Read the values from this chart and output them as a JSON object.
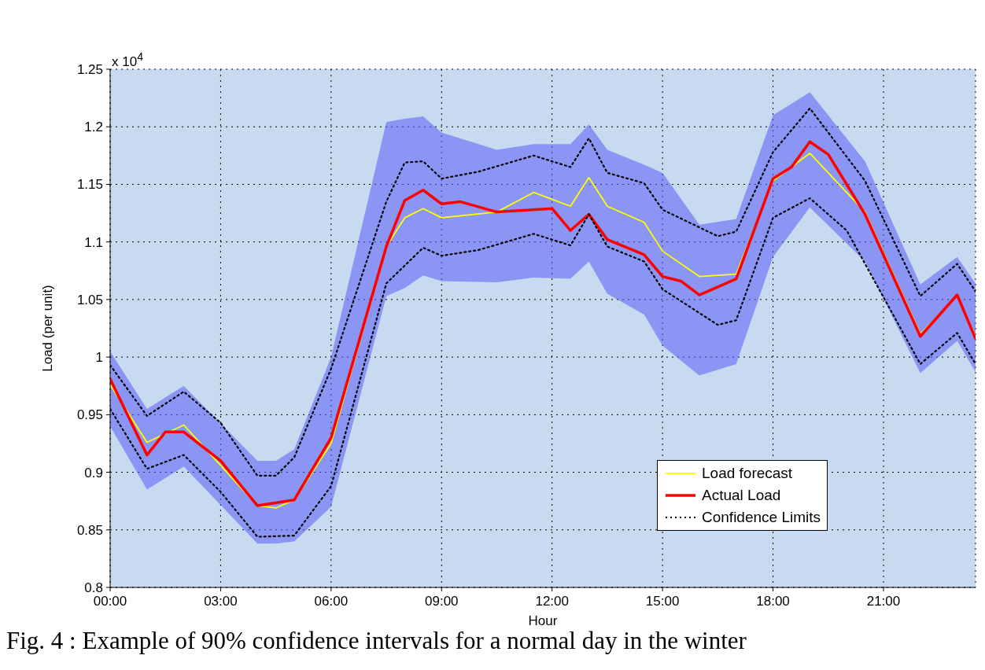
{
  "chart_data": {
    "type": "line",
    "xlabel": "Hour",
    "ylabel": "Load (per unit)",
    "annotations": [
      "x 10$^{4}$",
      "Fig. 4 : Example of 90% confidence intervals for a normal day in the winter"
    ],
    "xlim": [
      0,
      23.5
    ],
    "xticks": [
      {
        "value": 0,
        "label": "00:00"
      },
      {
        "value": 3,
        "label": "03:00"
      },
      {
        "value": 6,
        "label": "06:00"
      },
      {
        "value": 9,
        "label": "09:00"
      },
      {
        "value": 12,
        "label": "12:00"
      },
      {
        "value": 15,
        "label": "15:00"
      },
      {
        "value": 18,
        "label": "18:00"
      },
      {
        "value": 21,
        "label": "21:00"
      }
    ],
    "ylim": [
      0.8,
      1.25
    ],
    "yticks": [
      0.8,
      0.85,
      0.9,
      0.95,
      1,
      1.05,
      1.1,
      1.15,
      1.2,
      1.25
    ],
    "grid": true,
    "legend": "bottom right",
    "marker": "none",
    "series": [
      {
        "name": "Load forecast",
        "color": "#ffff00",
        "line_style": "solid",
        "x": [
          0,
          1,
          2,
          4,
          4.5,
          5,
          6,
          7.5,
          8,
          8.5,
          9,
          10.5,
          11.5,
          12.5,
          13,
          13.5,
          14.5,
          15,
          16,
          17,
          18,
          19,
          20.5,
          22,
          23,
          23.5
        ],
        "values": [
          0.976,
          0.926,
          0.941,
          0.871,
          0.869,
          0.876,
          0.925,
          1.096,
          1.121,
          1.129,
          1.121,
          1.126,
          1.143,
          1.131,
          1.156,
          1.131,
          1.117,
          1.092,
          1.07,
          1.072,
          1.153,
          1.177,
          1.126,
          1.02,
          1.053,
          1.018
        ],
        "lower": [
          0.94,
          0.885,
          0.905,
          0.838,
          0.838,
          0.84,
          0.87,
          1.053,
          1.06,
          1.071,
          1.066,
          1.065,
          1.069,
          1.068,
          1.083,
          1.055,
          1.037,
          1.01,
          0.984,
          0.994,
          1.087,
          1.13,
          1.083,
          0.986,
          1.014,
          0.987
        ],
        "upper": [
          1.005,
          0.955,
          0.975,
          0.91,
          0.91,
          0.92,
          1.0,
          1.204,
          1.207,
          1.209,
          1.195,
          1.18,
          1.185,
          1.185,
          1.202,
          1.18,
          1.167,
          1.16,
          1.115,
          1.12,
          1.21,
          1.23,
          1.17,
          1.063,
          1.087,
          1.064
        ]
      },
      {
        "name": "Actual Load",
        "color": "#ff0000",
        "line_style": "solid",
        "x": [
          0,
          1,
          1.5,
          2,
          3,
          4,
          5,
          6,
          7.5,
          8,
          8.5,
          9,
          9.5,
          10.5,
          12,
          12.5,
          13,
          13.5,
          14.5,
          15,
          15.5,
          16,
          17,
          18,
          18.5,
          19,
          19.5,
          20.5,
          22,
          23,
          23.5
        ],
        "values": [
          0.981,
          0.915,
          0.935,
          0.935,
          0.91,
          0.871,
          0.876,
          0.93,
          1.096,
          1.136,
          1.145,
          1.133,
          1.135,
          1.126,
          1.129,
          1.11,
          1.124,
          1.102,
          1.089,
          1.07,
          1.066,
          1.054,
          1.068,
          1.155,
          1.165,
          1.187,
          1.176,
          1.124,
          1.018,
          1.054,
          1.016
        ]
      },
      {
        "name": "Confidence Limits",
        "color": "#000000",
        "line_style": "dotted",
        "x": [
          0,
          1,
          2,
          3,
          4,
          4.5,
          5,
          6,
          7.5,
          8,
          8.5,
          9,
          10,
          11.5,
          12.5,
          13,
          13.5,
          14.5,
          15,
          16.5,
          17,
          18,
          19,
          20.5,
          22,
          23,
          23.5
        ],
        "values": [
          0.993,
          0.949,
          0.97,
          0.943,
          0.897,
          0.897,
          0.913,
          0.99,
          1.135,
          1.169,
          1.17,
          1.155,
          1.161,
          1.175,
          1.165,
          1.19,
          1.16,
          1.151,
          1.128,
          1.105,
          1.109,
          1.178,
          1.216,
          1.153,
          1.053,
          1.081,
          1.057
        ]
      },
      {
        "color": "#000000",
        "line_style": "dotted",
        "x": [
          0,
          1,
          2,
          3,
          4,
          5,
          6,
          7.5,
          8.5,
          9,
          10,
          11.5,
          12.5,
          13,
          13.5,
          14.5,
          15,
          16.5,
          17,
          18,
          19,
          20,
          22,
          23,
          23.5
        ],
        "values": [
          0.955,
          0.903,
          0.915,
          0.883,
          0.844,
          0.845,
          0.888,
          1.064,
          1.095,
          1.088,
          1.093,
          1.107,
          1.097,
          1.124,
          1.096,
          1.083,
          1.059,
          1.028,
          1.032,
          1.121,
          1.138,
          1.11,
          0.994,
          1.021,
          0.994
        ]
      }
    ]
  }
}
